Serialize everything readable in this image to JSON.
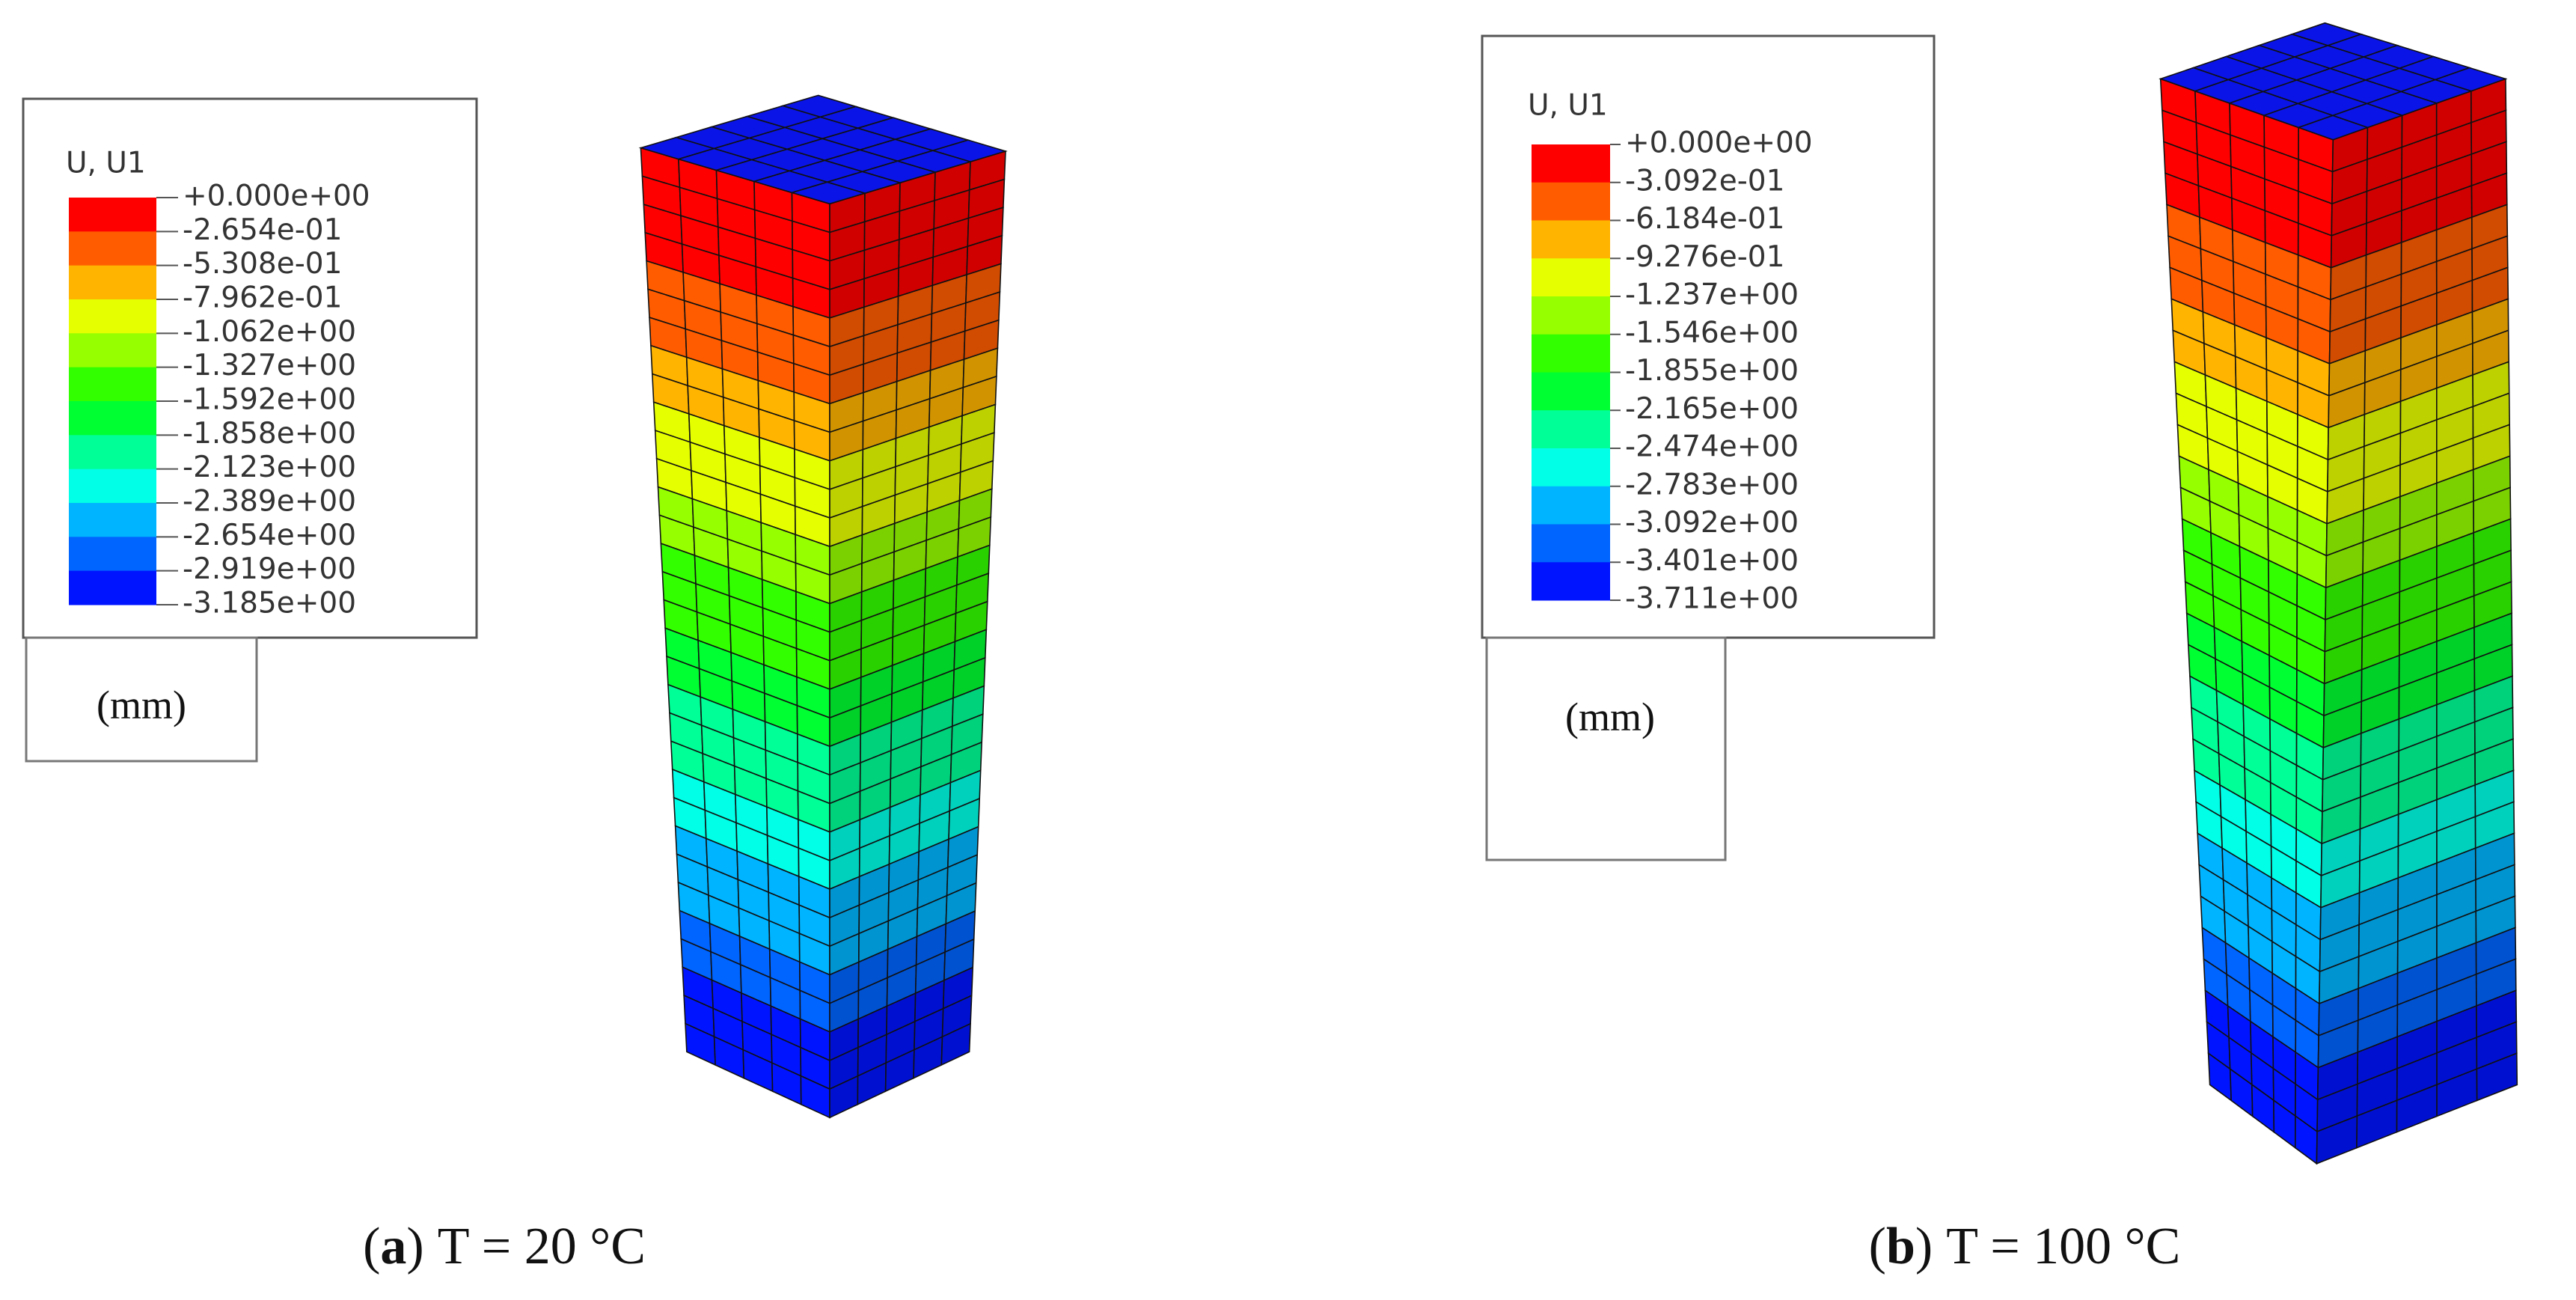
{
  "panels": [
    {
      "legend": {
        "title": "U, U1",
        "labels": [
          "+0.000e+00",
          "-2.654e-01",
          "-5.308e-01",
          "-7.962e-01",
          "-1.062e+00",
          "-1.327e+00",
          "-1.592e+00",
          "-1.858e+00",
          "-2.123e+00",
          "-2.389e+00",
          "-2.654e+00",
          "-2.919e+00",
          "-3.185e+00"
        ]
      },
      "unit": "(mm)",
      "caption": {
        "open": "(",
        "label": "a",
        "close": ")",
        "text": "T = 20 °C"
      }
    },
    {
      "legend": {
        "title": "U, U1",
        "labels": [
          "+0.000e+00",
          "-3.092e-01",
          "-6.184e-01",
          "-9.276e-01",
          "-1.237e+00",
          "-1.546e+00",
          "-1.855e+00",
          "-2.165e+00",
          "-2.474e+00",
          "-2.783e+00",
          "-3.092e+00",
          "-3.401e+00",
          "-3.711e+00"
        ]
      },
      "unit": "(mm)",
      "caption": {
        "open": "(",
        "label": "b",
        "close": ")",
        "text": "T = 100 °C"
      }
    }
  ]
}
